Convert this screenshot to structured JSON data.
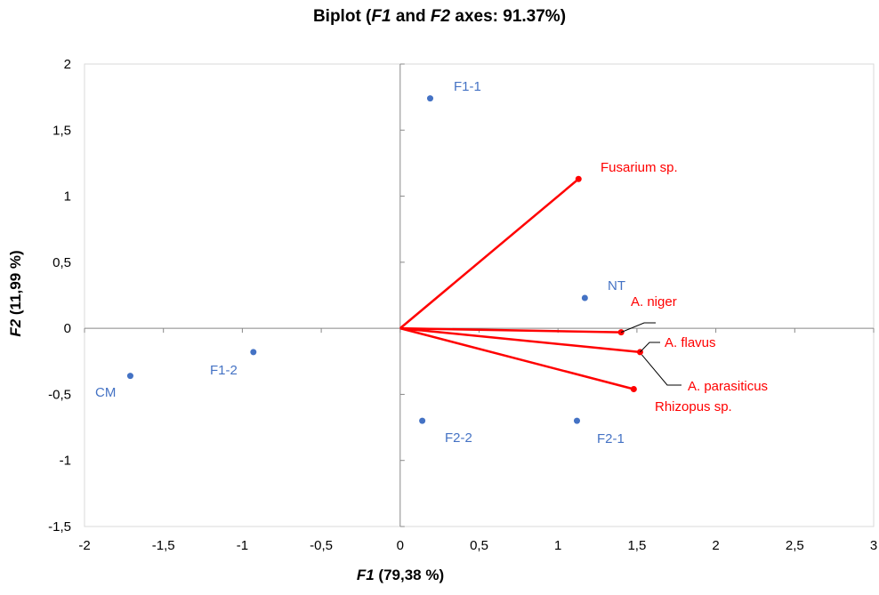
{
  "title": {
    "prefix": "Biplot (",
    "axis1": "F1",
    "middle": " and ",
    "axis2": "F2",
    "suffix": " axes: 91.37%)"
  },
  "axes": {
    "x_label_axis": "F1",
    "x_label_pct": " (79,38 %)",
    "y_label_axis": "F2",
    "y_label_pct": " (11,99 %)"
  },
  "chart_data": {
    "type": "scatter",
    "title": "Biplot (F1 and F2 axes: 91.37%)",
    "xlabel": "F1 (79,38 %)",
    "ylabel": "F2 (11,99 %)",
    "xlim": [
      -2,
      3
    ],
    "ylim": [
      -1.5,
      2
    ],
    "xticks": [
      "-2",
      "-1,5",
      "-1",
      "-0,5",
      "0",
      "0,5",
      "1",
      "1,5",
      "2",
      "2,5",
      "3"
    ],
    "yticks": [
      "2",
      "1,5",
      "1",
      "0,5",
      "0",
      "-0,5",
      "-1",
      "-1,5"
    ],
    "grid": false,
    "colors": {
      "observations": "#4472c4",
      "variables": "#ff0000",
      "axis": "#888888",
      "leader": "#000000"
    },
    "observations": [
      {
        "name": "F1-1",
        "x": 0.19,
        "y": 1.74
      },
      {
        "name": "NT",
        "x": 1.17,
        "y": 0.23
      },
      {
        "name": "F1-2",
        "x": -0.93,
        "y": -0.18
      },
      {
        "name": "CM",
        "x": -1.71,
        "y": -0.36
      },
      {
        "name": "F2-2",
        "x": 0.14,
        "y": -0.7
      },
      {
        "name": "F2-1",
        "x": 1.12,
        "y": -0.7
      }
    ],
    "variables": [
      {
        "name": "Fusarium sp.",
        "x": 1.13,
        "y": 1.13
      },
      {
        "name": "A. niger",
        "x": 1.4,
        "y": -0.03
      },
      {
        "name": "A. flavus",
        "x": 1.52,
        "y": -0.18
      },
      {
        "name": "A. parasiticus",
        "x": 1.48,
        "y": -0.46
      },
      {
        "name": "Rhizopus sp.",
        "x": 1.48,
        "y": -0.46
      }
    ]
  }
}
